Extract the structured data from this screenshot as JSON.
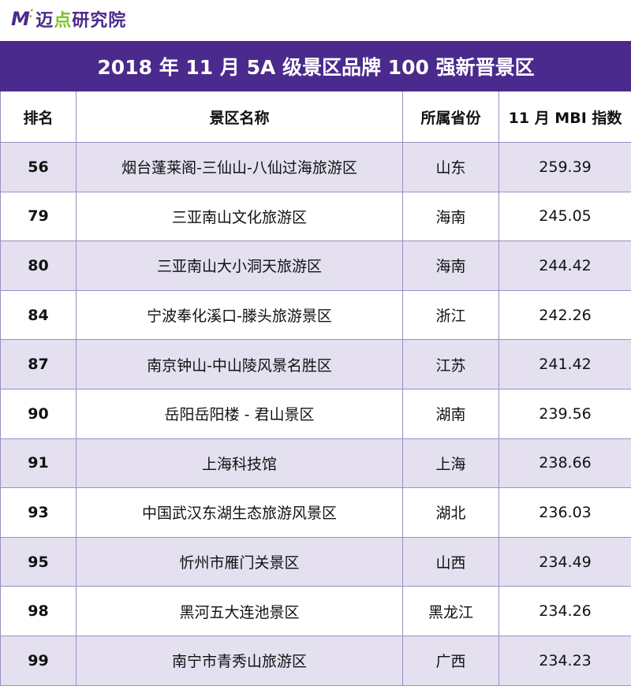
{
  "logo": {
    "mark": "M",
    "text_main": "迈",
    "text_accent": "点",
    "text_rest": "研究院"
  },
  "title": "2018 年 11 月 5A 级景区品牌 100 强新晋景区",
  "headers": [
    "排名",
    "景区名称",
    "所属省份",
    "11 月 MBI 指数"
  ],
  "rows": [
    {
      "rank": "56",
      "name": "烟台蓬莱阁-三仙山-八仙过海旅游区",
      "province": "山东",
      "mbi": "259.39"
    },
    {
      "rank": "79",
      "name": "三亚南山文化旅游区",
      "province": "海南",
      "mbi": "245.05"
    },
    {
      "rank": "80",
      "name": "三亚南山大小洞天旅游区",
      "province": "海南",
      "mbi": "244.42"
    },
    {
      "rank": "84",
      "name": "宁波奉化溪口-滕头旅游景区",
      "province": "浙江",
      "mbi": "242.26"
    },
    {
      "rank": "87",
      "name": "南京钟山-中山陵风景名胜区",
      "province": "江苏",
      "mbi": "241.42"
    },
    {
      "rank": "90",
      "name": "岳阳岳阳楼 - 君山景区",
      "province": "湖南",
      "mbi": "239.56"
    },
    {
      "rank": "91",
      "name": "上海科技馆",
      "province": "上海",
      "mbi": "238.66"
    },
    {
      "rank": "93",
      "name": "中国武汉东湖生态旅游风景区",
      "province": "湖北",
      "mbi": "236.03"
    },
    {
      "rank": "95",
      "name": "忻州市雁门关景区",
      "province": "山西",
      "mbi": "234.49"
    },
    {
      "rank": "98",
      "name": "黑河五大连池景区",
      "province": "黑龙江",
      "mbi": "234.26"
    },
    {
      "rank": "99",
      "name": "南宁市青秀山旅游区",
      "province": "广西",
      "mbi": "234.23"
    }
  ],
  "colors": {
    "header_bg": "#4a2a8c",
    "row_shade": "#e4e0f0",
    "border": "#9b8fc4",
    "logo_accent": "#7cc22a"
  }
}
